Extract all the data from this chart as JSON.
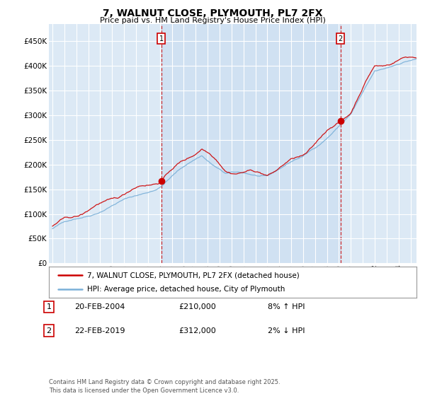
{
  "title": "7, WALNUT CLOSE, PLYMOUTH, PL7 2FX",
  "subtitle": "Price paid vs. HM Land Registry's House Price Index (HPI)",
  "ylim": [
    0,
    470000
  ],
  "yticks": [
    0,
    50000,
    100000,
    150000,
    200000,
    250000,
    300000,
    350000,
    400000,
    450000
  ],
  "bg_color": "#dce9f5",
  "fig_bg": "#ffffff",
  "grid_color": "#ffffff",
  "hpi_color": "#7ab0d8",
  "price_color": "#cc0000",
  "shade_color": "#c8ddf0",
  "vline_color": "#cc0000",
  "sale1_year": 2004.13,
  "sale1_price": 210000,
  "sale2_year": 2019.13,
  "sale2_price": 312000,
  "legend_label_price": "7, WALNUT CLOSE, PLYMOUTH, PL7 2FX (detached house)",
  "legend_label_hpi": "HPI: Average price, detached house, City of Plymouth",
  "note1_label": "1",
  "note1_date": "20-FEB-2004",
  "note1_price": "£210,000",
  "note1_hpi": "8% ↑ HPI",
  "note2_label": "2",
  "note2_date": "22-FEB-2019",
  "note2_price": "£312,000",
  "note2_hpi": "2% ↓ HPI",
  "footer": "Contains HM Land Registry data © Crown copyright and database right 2025.\nThis data is licensed under the Open Government Licence v3.0.",
  "xstart": 1995,
  "xend": 2026
}
